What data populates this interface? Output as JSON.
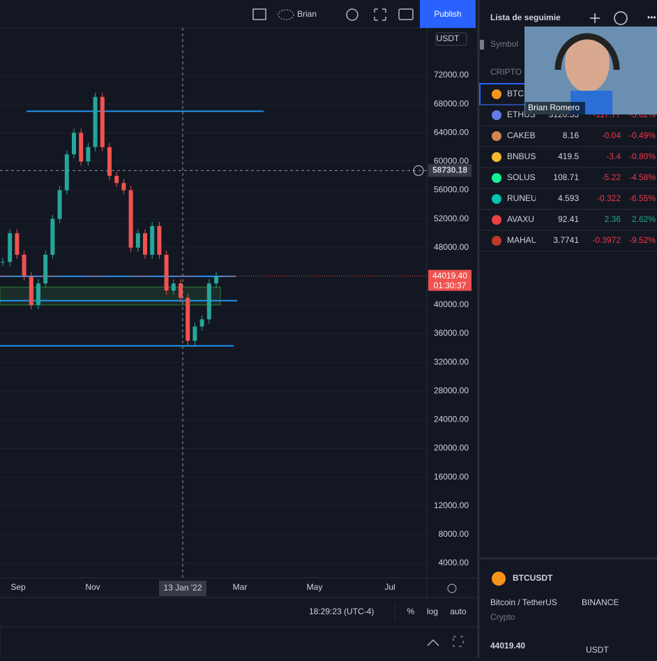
{
  "toolbar": {
    "user": "Brian",
    "publish": "Publish"
  },
  "chart": {
    "currency": "USDT",
    "ylim": [
      1957,
      78615
    ],
    "yticks": [
      {
        "value": 72000,
        "label": "72000.00"
      },
      {
        "value": 68000,
        "label": "68000.00"
      },
      {
        "value": 64000,
        "label": "64000.00"
      },
      {
        "value": 60000,
        "label": "60000.00"
      },
      {
        "value": 56000,
        "label": "56000.00"
      },
      {
        "value": 52000,
        "label": "52000.00"
      },
      {
        "value": 48000,
        "label": "48000.00"
      },
      {
        "value": 40000,
        "label": "40000.00"
      },
      {
        "value": 36000,
        "label": "36000.00"
      },
      {
        "value": 32000,
        "label": "32000.00"
      },
      {
        "value": 28000,
        "label": "28000.00"
      },
      {
        "value": 24000,
        "label": "24000.00"
      },
      {
        "value": 20000,
        "label": "20000.00"
      },
      {
        "value": 16000,
        "label": "16000.00"
      },
      {
        "value": 12000,
        "label": "12000.00"
      },
      {
        "value": 8000,
        "label": "8000.00"
      },
      {
        "value": 4000,
        "label": "4000.00"
      }
    ],
    "xticks": [
      "Sep",
      "Nov",
      "Mar",
      "May",
      "Jul"
    ],
    "series": [
      46000,
      50000,
      47000,
      44000,
      40000,
      43000,
      47000,
      52000,
      56000,
      61000,
      64000,
      60000,
      62000,
      69000,
      62000,
      58000,
      57000,
      56000,
      48000,
      50000,
      47000,
      51000,
      47000,
      42000,
      43000,
      41000,
      35000,
      37000,
      38000,
      43000,
      44019.4
    ],
    "levels": [
      67000,
      44000,
      40600,
      34300
    ],
    "zone": [
      40000,
      42500
    ],
    "crosshair": {
      "value": 58730.18,
      "label": "58730.18",
      "date": "13 Jan '22"
    },
    "last_price": {
      "value": 44019.4,
      "label": "44019.40",
      "countdown": "01:30:37"
    },
    "status": {
      "time": "18:29:23 (UTC-4)",
      "percent": "%",
      "log": "log",
      "auto": "auto"
    }
  },
  "watchlist": {
    "title": "Lista de seguimie",
    "search": "Symbol",
    "section": "CRIPTO",
    "rows": [
      [
        "BTC",
        "",
        "",
        ""
      ],
      [
        "ETHUS",
        "3120.53",
        "-117.77",
        "-3.62%"
      ],
      [
        "CAKEB",
        "8.16",
        "-0.04",
        "-0.49%"
      ],
      [
        "BNBUS",
        "419.5",
        "-3.4",
        "-0.80%"
      ],
      [
        "SOLUS",
        "108.71",
        "-5.22",
        "-4.58%"
      ],
      [
        "RUNEU",
        "4.593",
        "-0.322",
        "-6.55%"
      ],
      [
        "AVAXU",
        "92.41",
        "2.36",
        "2.62%"
      ],
      [
        "MAHAU",
        "3.7741",
        "-0.3972",
        "-9.52%"
      ]
    ]
  },
  "webcam": {
    "name": "Brian Romero"
  },
  "details": {
    "symbol": "BTCUSDT",
    "pair": "Bitcoin / TetherUS",
    "exchange": "BINANCE",
    "category": "Crypto",
    "price": "44019.40",
    "unit": "USDT"
  }
}
